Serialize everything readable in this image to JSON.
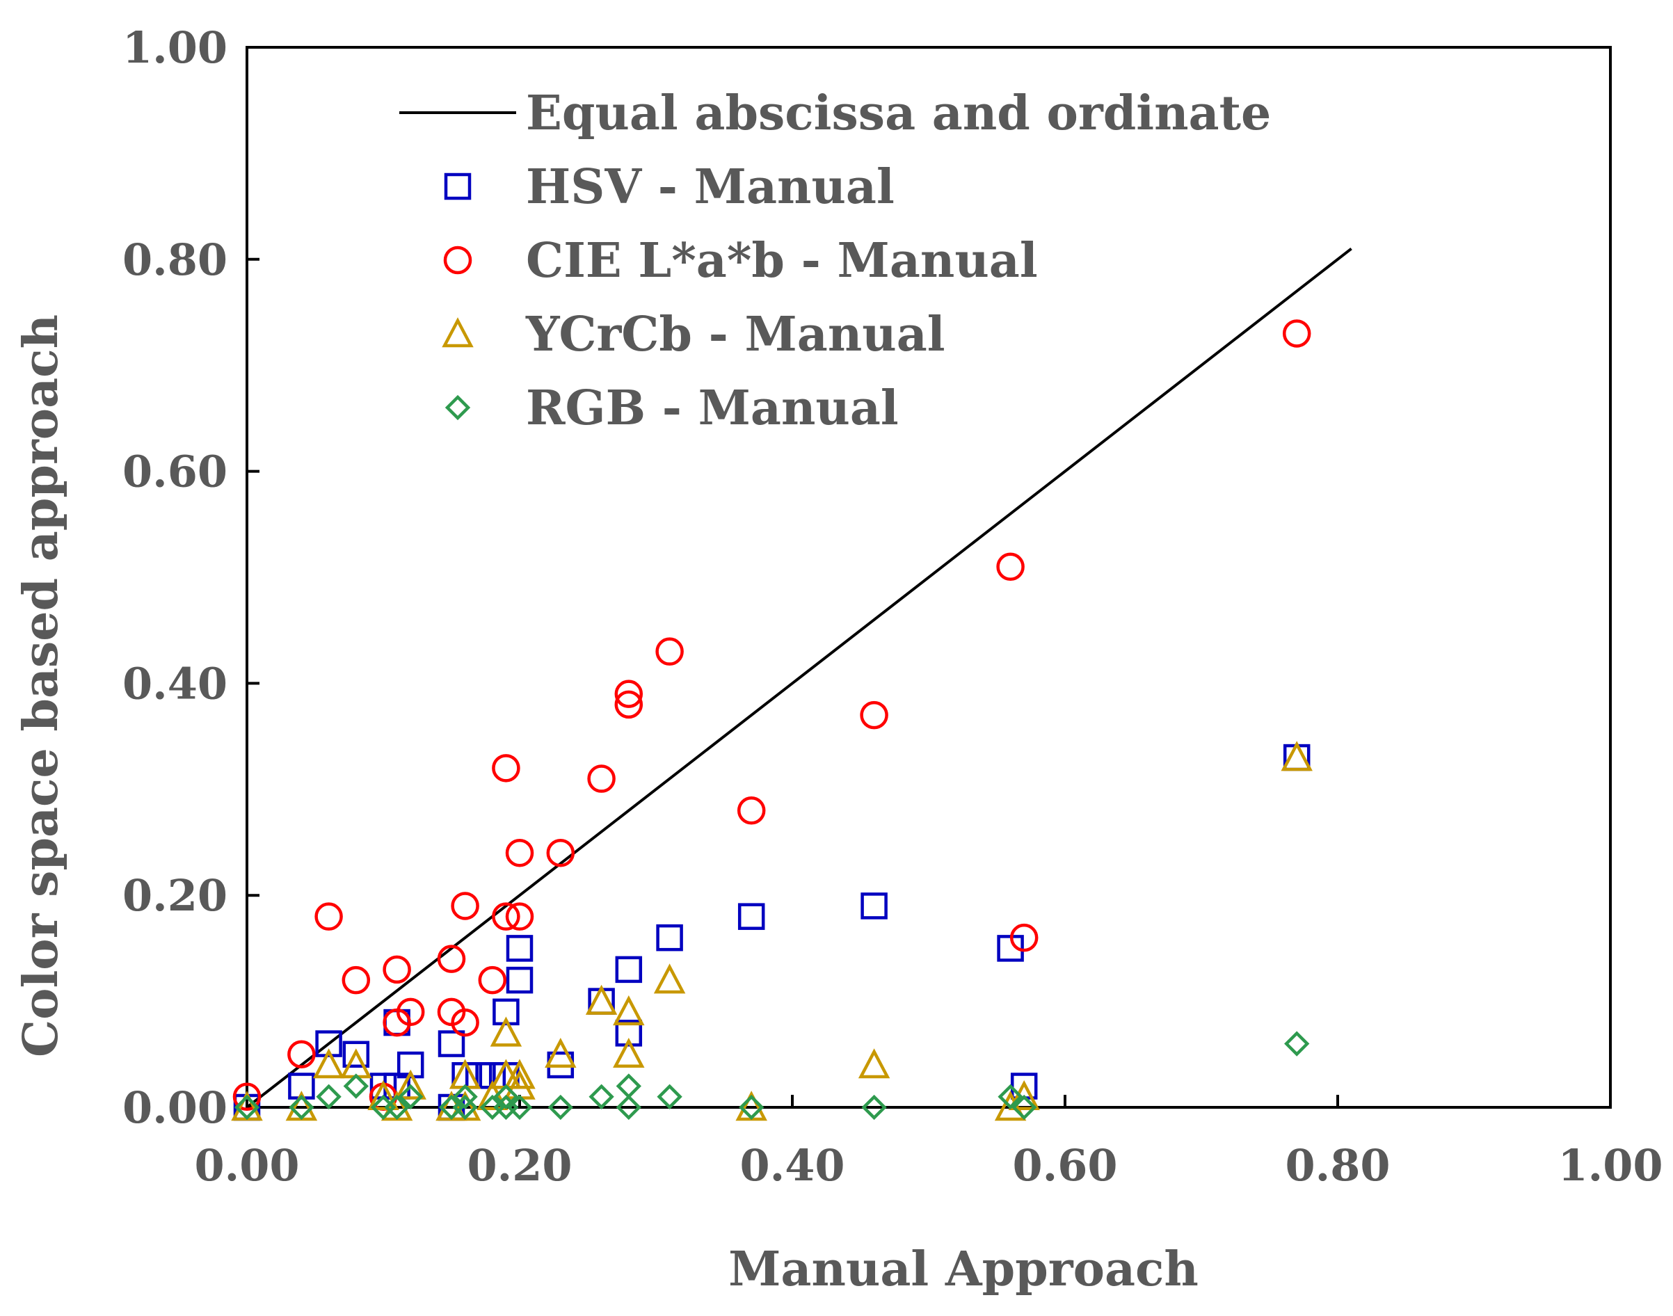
{
  "chart_data": {
    "type": "scatter",
    "title": "",
    "xlabel": "Manual Approach",
    "ylabel": "Color space based approach",
    "xlim": [
      0,
      1
    ],
    "ylim": [
      0,
      1
    ],
    "x_ticks": [
      "0.00",
      "0.20",
      "0.40",
      "0.60",
      "0.80",
      "1.00"
    ],
    "y_ticks": [
      "0.00",
      "0.20",
      "0.40",
      "0.60",
      "0.80",
      "1.00"
    ],
    "grid": false,
    "legend_position": "top-left",
    "reference_line": {
      "name": "Equal abscissa and ordinate",
      "x": [
        0,
        0.81
      ],
      "y": [
        0,
        0.81
      ],
      "color": "#000000"
    },
    "series": [
      {
        "name": "HSV - Manual",
        "marker": "square",
        "color": "#0000c0",
        "points": [
          [
            0.0,
            0.0
          ],
          [
            0.04,
            0.02
          ],
          [
            0.06,
            0.06
          ],
          [
            0.08,
            0.05
          ],
          [
            0.1,
            0.02
          ],
          [
            0.11,
            0.08
          ],
          [
            0.11,
            0.02
          ],
          [
            0.12,
            0.04
          ],
          [
            0.15,
            0.06
          ],
          [
            0.15,
            0.0
          ],
          [
            0.16,
            0.03
          ],
          [
            0.17,
            0.03
          ],
          [
            0.18,
            0.03
          ],
          [
            0.19,
            0.09
          ],
          [
            0.19,
            0.03
          ],
          [
            0.2,
            0.15
          ],
          [
            0.2,
            0.12
          ],
          [
            0.23,
            0.04
          ],
          [
            0.26,
            0.1
          ],
          [
            0.28,
            0.13
          ],
          [
            0.28,
            0.07
          ],
          [
            0.31,
            0.16
          ],
          [
            0.37,
            0.18
          ],
          [
            0.46,
            0.19
          ],
          [
            0.56,
            0.15
          ],
          [
            0.57,
            0.02
          ],
          [
            0.77,
            0.33
          ]
        ]
      },
      {
        "name": "CIE L*a*b - Manual",
        "marker": "circle",
        "color": "#ff0000",
        "points": [
          [
            0.0,
            0.01
          ],
          [
            0.04,
            0.05
          ],
          [
            0.06,
            0.18
          ],
          [
            0.08,
            0.12
          ],
          [
            0.1,
            0.01
          ],
          [
            0.11,
            0.13
          ],
          [
            0.11,
            0.08
          ],
          [
            0.12,
            0.09
          ],
          [
            0.15,
            0.14
          ],
          [
            0.15,
            0.09
          ],
          [
            0.16,
            0.19
          ],
          [
            0.16,
            0.08
          ],
          [
            0.18,
            0.12
          ],
          [
            0.19,
            0.32
          ],
          [
            0.19,
            0.18
          ],
          [
            0.2,
            0.24
          ],
          [
            0.2,
            0.18
          ],
          [
            0.23,
            0.24
          ],
          [
            0.26,
            0.31
          ],
          [
            0.28,
            0.39
          ],
          [
            0.28,
            0.38
          ],
          [
            0.31,
            0.43
          ],
          [
            0.37,
            0.28
          ],
          [
            0.46,
            0.37
          ],
          [
            0.56,
            0.51
          ],
          [
            0.57,
            0.16
          ],
          [
            0.77,
            0.73
          ]
        ]
      },
      {
        "name": "YCrCb - Manual",
        "marker": "triangle",
        "color": "#c89800",
        "points": [
          [
            0.0,
            0.0
          ],
          [
            0.04,
            0.0
          ],
          [
            0.06,
            0.04
          ],
          [
            0.08,
            0.04
          ],
          [
            0.1,
            0.01
          ],
          [
            0.11,
            0.0
          ],
          [
            0.12,
            0.02
          ],
          [
            0.15,
            0.0
          ],
          [
            0.16,
            0.03
          ],
          [
            0.16,
            0.0
          ],
          [
            0.18,
            0.01
          ],
          [
            0.19,
            0.07
          ],
          [
            0.19,
            0.03
          ],
          [
            0.2,
            0.03
          ],
          [
            0.2,
            0.02
          ],
          [
            0.23,
            0.05
          ],
          [
            0.26,
            0.1
          ],
          [
            0.28,
            0.09
          ],
          [
            0.28,
            0.05
          ],
          [
            0.31,
            0.12
          ],
          [
            0.37,
            0.0
          ],
          [
            0.46,
            0.04
          ],
          [
            0.56,
            0.0
          ],
          [
            0.57,
            0.01
          ],
          [
            0.77,
            0.33
          ]
        ]
      },
      {
        "name": "RGB - Manual",
        "marker": "diamond",
        "color": "#2e9a4e",
        "points": [
          [
            0.0,
            0.0
          ],
          [
            0.04,
            0.0
          ],
          [
            0.06,
            0.01
          ],
          [
            0.08,
            0.02
          ],
          [
            0.1,
            0.0
          ],
          [
            0.11,
            0.0
          ],
          [
            0.12,
            0.01
          ],
          [
            0.15,
            0.0
          ],
          [
            0.16,
            0.0
          ],
          [
            0.16,
            0.01
          ],
          [
            0.18,
            0.0
          ],
          [
            0.19,
            0.01
          ],
          [
            0.19,
            0.0
          ],
          [
            0.2,
            0.0
          ],
          [
            0.23,
            0.0
          ],
          [
            0.26,
            0.01
          ],
          [
            0.28,
            0.02
          ],
          [
            0.28,
            0.0
          ],
          [
            0.31,
            0.01
          ],
          [
            0.37,
            0.0
          ],
          [
            0.46,
            0.0
          ],
          [
            0.56,
            0.01
          ],
          [
            0.57,
            0.0
          ],
          [
            0.77,
            0.06
          ]
        ]
      }
    ]
  }
}
